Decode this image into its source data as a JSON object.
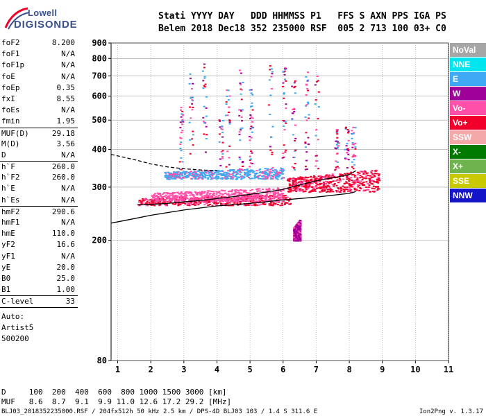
{
  "logo": {
    "brand": "Lowell",
    "product": "DIGISONDE"
  },
  "header": {
    "row1": "Stati YYYY DAY   DDD HHMMSS P1   FFS S AXN PPS IGA PS",
    "row2": "Belem 2018 Dec18 352 235000 RSF  005 2 713 100 03+ C0"
  },
  "params": [
    {
      "k": "foF2",
      "v": "8.200"
    },
    {
      "k": "foF1",
      "v": "N/A"
    },
    {
      "k": "foF1p",
      "v": "N/A"
    },
    {
      "k": "foE",
      "v": "N/A"
    },
    {
      "k": "foEp",
      "v": "0.35"
    },
    {
      "k": "fxI",
      "v": "8.55"
    },
    {
      "k": "foEs",
      "v": "N/A"
    },
    {
      "k": "fmin",
      "v": "1.95"
    },
    {
      "k": "MUF(D)",
      "v": "29.18",
      "sep": true
    },
    {
      "k": "M(D)",
      "v": "3.56"
    },
    {
      "k": "D",
      "v": "N/A"
    },
    {
      "k": "h`F",
      "v": "260.0",
      "sep": true
    },
    {
      "k": "h`F2",
      "v": "260.0"
    },
    {
      "k": "h`E",
      "v": "N/A"
    },
    {
      "k": "h`Es",
      "v": "N/A"
    },
    {
      "k": "hmF2",
      "v": "290.6",
      "sep": true
    },
    {
      "k": "hmF1",
      "v": "N/A"
    },
    {
      "k": "hmE",
      "v": "110.0"
    },
    {
      "k": "yF2",
      "v": "16.6"
    },
    {
      "k": "yF1",
      "v": "N/A"
    },
    {
      "k": "yE",
      "v": "20.0"
    },
    {
      "k": "B0",
      "v": "25.0"
    },
    {
      "k": "B1",
      "v": "1.00"
    },
    {
      "k": "C-level",
      "v": "33",
      "sep": true
    }
  ],
  "auto": [
    "Auto:",
    "Artist5",
    "500200"
  ],
  "legend": [
    {
      "label": "NoVal",
      "color": "#a6a6a6"
    },
    {
      "label": "NNE",
      "color": "#00e5ee"
    },
    {
      "label": "E",
      "color": "#3fa9f5"
    },
    {
      "label": "W",
      "color": "#a0009a"
    },
    {
      "label": "Vo-",
      "color": "#ff4fa8"
    },
    {
      "label": "Vo+",
      "color": "#f0002a"
    },
    {
      "label": "SSW",
      "color": "#f4a8a8"
    },
    {
      "label": "X-",
      "color": "#007a00"
    },
    {
      "label": "X+",
      "color": "#6fb34f"
    },
    {
      "label": "SSE",
      "color": "#c9c900"
    },
    {
      "label": "NNW",
      "color": "#1414c8"
    }
  ],
  "bottom": {
    "d_row": "D     100  200  400  600  800 1000 1500 3000 [km]",
    "muf_row": "MUF   8.6  8.7  9.1  9.9 11.0 12.6 17.2 29.2 [MHz]",
    "footer": "BLJ03_2018352235000.RSF / 204fx512h 50 kHz 2.5 km / DPS-4D BLJ03 103 / 1.4 S 311.6 E",
    "version": "Ion2Png v. 1.3.17"
  },
  "chart_data": {
    "type": "scatter",
    "title": "",
    "xlabel": "",
    "ylabel": "",
    "xlim": [
      0.8,
      11
    ],
    "ylim": [
      80,
      900
    ],
    "y_scale": "log",
    "x_ticks": [
      1,
      2,
      3,
      4,
      5,
      6,
      7,
      8,
      9,
      10,
      11
    ],
    "y_ticks": [
      80,
      200,
      300,
      400,
      500,
      600,
      700,
      800,
      900
    ],
    "grid": true,
    "legend_position": "right",
    "echo_bands": [
      {
        "name": "Vo+",
        "x_range": [
          1.6,
          6.2
        ],
        "h_range": [
          262,
          285
        ],
        "color": "#f0002a"
      },
      {
        "name": "Vo-",
        "x_range": [
          2.0,
          6.0
        ],
        "h_range": [
          270,
          300
        ],
        "color": "#ff4fa8"
      },
      {
        "name": "E",
        "x_range": [
          2.4,
          6.0
        ],
        "h_range": [
          320,
          350
        ],
        "color": "#3fa9f5"
      },
      {
        "name": "Vo+",
        "x_range": [
          6.1,
          8.9
        ],
        "h_range": [
          290,
          345
        ],
        "color": "#f0002a"
      },
      {
        "name": "W",
        "x_range": [
          6.3,
          6.5
        ],
        "h_range": [
          200,
          235
        ],
        "color": "#a0009a"
      }
    ],
    "traced_curve": {
      "x": [
        1.6,
        2.0,
        2.5,
        3.0,
        3.5,
        4.0,
        4.5,
        5.0,
        5.5,
        6.0,
        6.5,
        7.0,
        7.5,
        8.0,
        8.2
      ],
      "h": [
        262,
        263,
        265,
        268,
        271,
        275,
        279,
        284,
        289,
        295,
        305,
        315,
        322,
        330,
        340
      ]
    },
    "profile_curve": {
      "x": [
        0.8,
        1.5,
        2.0,
        3.0,
        4.0,
        5.0,
        6.0,
        7.0,
        8.0,
        8.2
      ],
      "h": [
        228,
        236,
        242,
        252,
        260,
        265,
        272,
        278,
        286,
        290
      ]
    },
    "dashed_curve": {
      "x": [
        0.8,
        1.5,
        2.0,
        2.5,
        3.0,
        3.5,
        4.0
      ],
      "h": [
        385,
        370,
        358,
        350,
        345,
        342,
        340
      ]
    }
  }
}
